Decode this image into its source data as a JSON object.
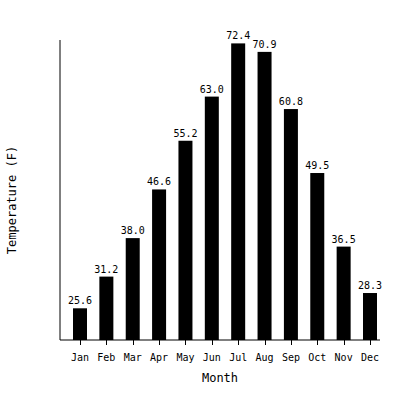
{
  "chart_data": {
    "type": "bar",
    "x_label": "Month",
    "y_label": "Temperature (F)",
    "categories": [
      "Jan",
      "Feb",
      "Mar",
      "Apr",
      "May",
      "Jun",
      "Jul",
      "Aug",
      "Sep",
      "Oct",
      "Nov",
      "Dec"
    ],
    "values": [
      25.6,
      31.2,
      38.0,
      46.6,
      55.2,
      63.0,
      72.4,
      70.9,
      60.8,
      49.5,
      36.5,
      28.3
    ],
    "value_labels": [
      "25.6",
      "31.2",
      "38.0",
      "46.6",
      "55.2",
      "63.0",
      "72.4",
      "70.9",
      "60.8",
      "49.5",
      "36.5",
      "28.3"
    ],
    "color": "#000000",
    "ylim": [
      20,
      73
    ],
    "grid": false,
    "data_labels": true,
    "tick_labels": "x"
  }
}
